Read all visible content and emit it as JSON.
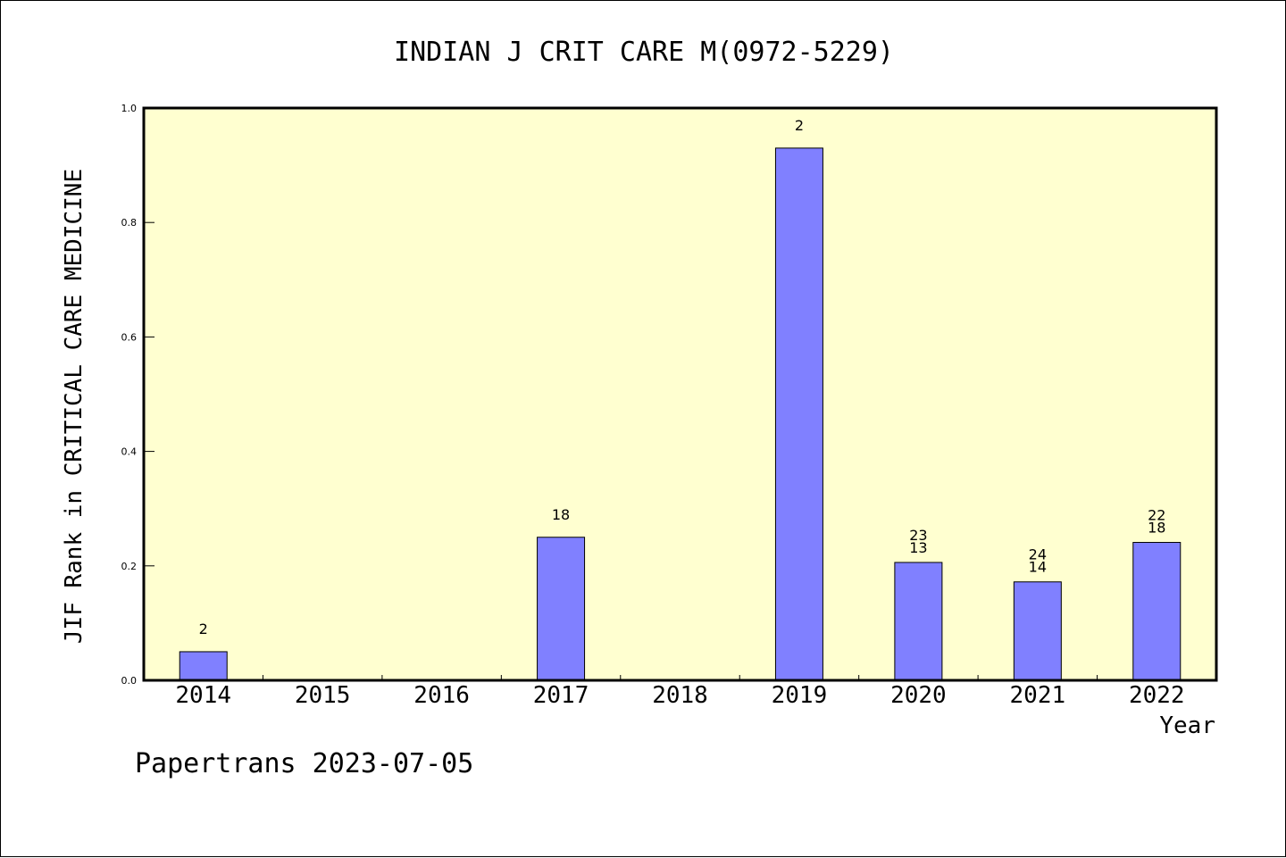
{
  "chart_data": {
    "type": "bar",
    "title": "INDIAN J CRIT CARE M(0972-5229)",
    "xlabel": "Year",
    "ylabel": "JIF Rank in CRITICAL CARE MEDICINE",
    "ylim": [
      0.0,
      1.0
    ],
    "yticks": [
      "0.0",
      "0.2",
      "0.4",
      "0.6",
      "0.8",
      "1.0"
    ],
    "categories": [
      "2014",
      "2015",
      "2016",
      "2017",
      "2018",
      "2019",
      "2020",
      "2021",
      "2022"
    ],
    "values": [
      0.05,
      null,
      null,
      0.25,
      null,
      0.93,
      0.206,
      0.172,
      0.241
    ],
    "bar_labels": [
      [
        "2"
      ],
      [],
      [],
      [
        "18"
      ],
      [],
      [
        "2"
      ],
      [
        "23",
        "13"
      ],
      [
        "24",
        "14"
      ],
      [
        "22",
        "18"
      ]
    ],
    "grid": false,
    "colors": {
      "plot_background": "#ffffd0",
      "bar_fill": "#8080ff",
      "bar_stroke": "#000000"
    }
  },
  "footer": {
    "credit": "Papertrans 2023-07-05"
  }
}
